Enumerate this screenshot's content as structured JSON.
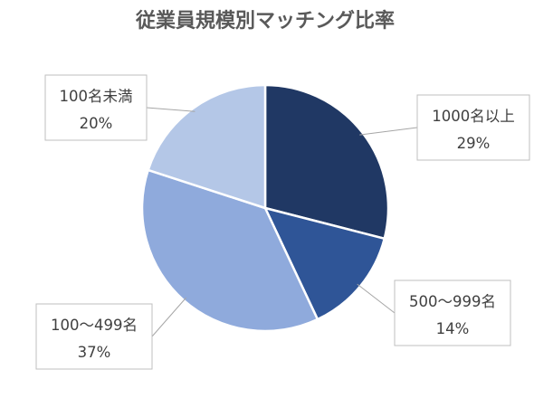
{
  "chart_data": {
    "type": "pie",
    "title": "従業員規模別マッチング比率",
    "categories": [
      "1000名以上",
      "500～999名",
      "100～499名",
      "100名未満"
    ],
    "values": [
      29,
      14,
      37,
      20
    ],
    "value_labels": [
      "29%",
      "14%",
      "37%",
      "20%"
    ],
    "colors": [
      "#203864",
      "#2F5597",
      "#8FAADC",
      "#B4C7E7"
    ],
    "start_angle_deg": 0,
    "direction": "clockwise",
    "legend": "none"
  }
}
